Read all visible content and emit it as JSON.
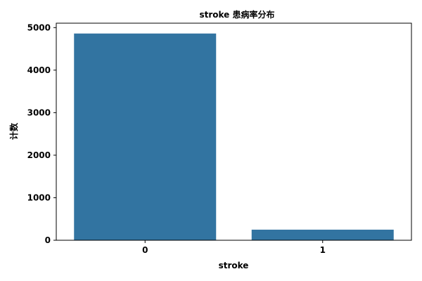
{
  "chart_data": {
    "type": "bar",
    "title": "stroke 患病率分布",
    "xlabel": "stroke",
    "ylabel": "计数",
    "categories": [
      "0",
      "1"
    ],
    "values": [
      4861,
      249
    ],
    "ylim": [
      0,
      5104
    ],
    "yticks": [
      "0",
      "1000",
      "2000",
      "3000",
      "4000",
      "5000"
    ],
    "grid": false,
    "bar_color": "#3274a1"
  }
}
